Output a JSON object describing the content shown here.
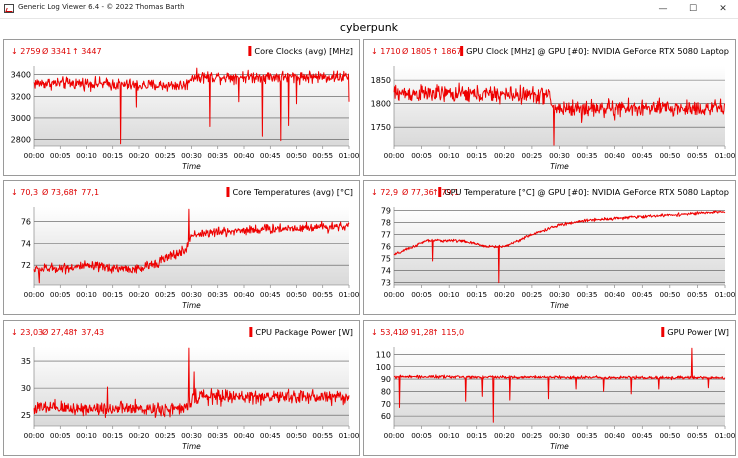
{
  "window": {
    "title": "Generic Log Viewer 6.4 - © 2022 Thomas Barth",
    "minimize_glyph": "—",
    "maximize_glyph": "☐",
    "close_glyph": "✕"
  },
  "page_title": "cyberpunk",
  "colors": {
    "line": "#ee0000",
    "stats": "#dd0000",
    "legend_box": "#ee0000"
  },
  "chart_data": [
    {
      "type": "line",
      "title": "Core Clocks (avg) [MHz]",
      "stats": {
        "min": "↓ 2759",
        "avg": "Ø 3341",
        "max": "↑ 3447"
      },
      "xlabel": "Time",
      "xlim": [
        0,
        60
      ],
      "x_ticks": [
        "00:00",
        "00:05",
        "00:10",
        "00:15",
        "00:20",
        "00:25",
        "00:30",
        "00:35",
        "00:40",
        "00:45",
        "00:50",
        "00:55",
        "01:00"
      ],
      "ylim": [
        2740,
        3480
      ],
      "y_ticks": [
        2800,
        3000,
        3200,
        3400
      ],
      "series": [
        {
          "x_unit": "minutes",
          "profile": [
            [
              0,
              3320
            ],
            [
              10,
              3320
            ],
            [
              20,
              3300
            ],
            [
              29,
              3300
            ],
            [
              30,
              3380
            ],
            [
              60,
              3380
            ]
          ],
          "noise": 55,
          "dips": [
            [
              16.5,
              2760
            ],
            [
              19.5,
              3100
            ],
            [
              33.5,
              2920
            ],
            [
              39,
              3150
            ],
            [
              43.5,
              2830
            ],
            [
              47,
              2790
            ],
            [
              48.5,
              2930
            ],
            [
              50,
              3130
            ],
            [
              60,
              3150
            ]
          ]
        }
      ]
    },
    {
      "type": "line",
      "title": "GPU Clock [MHz] @ GPU [#0]: NVIDIA GeForce RTX 5080 Laptop",
      "stats": {
        "min": "↓ 1710",
        "avg": "Ø 1805",
        "max": "↑ 1867"
      },
      "xlabel": "Time",
      "xlim": [
        0,
        60
      ],
      "x_ticks": [
        "00:00",
        "00:05",
        "00:10",
        "00:15",
        "00:20",
        "00:25",
        "00:30",
        "00:35",
        "00:40",
        "00:45",
        "00:50",
        "00:55",
        "01:00"
      ],
      "ylim": [
        1710,
        1880
      ],
      "y_ticks": [
        1750,
        1800,
        1850
      ],
      "series": [
        {
          "x_unit": "minutes",
          "profile": [
            [
              0,
              1822
            ],
            [
              28,
              1818
            ],
            [
              29,
              1790
            ],
            [
              60,
              1790
            ]
          ],
          "noise": 18,
          "dips": [
            [
              29,
              1712
            ],
            [
              34,
              1760
            ],
            [
              40,
              1765
            ]
          ]
        }
      ]
    },
    {
      "type": "line",
      "title": "Core Temperatures (avg) [°C]",
      "stats": {
        "min": "↓ 70,3",
        "avg": "Ø 73,68",
        "max": "↑ 77,1"
      },
      "xlabel": "Time",
      "xlim": [
        0,
        60
      ],
      "x_ticks": [
        "00:00",
        "00:05",
        "00:10",
        "00:15",
        "00:20",
        "00:25",
        "00:30",
        "00:35",
        "00:40",
        "00:45",
        "00:50",
        "00:55",
        "01:00"
      ],
      "ylim": [
        70.2,
        77.3
      ],
      "y_ticks": [
        72,
        74,
        76
      ],
      "series": [
        {
          "x_unit": "minutes",
          "profile": [
            [
              0,
              71.6
            ],
            [
              10,
              71.9
            ],
            [
              20,
              71.6
            ],
            [
              24,
              72.4
            ],
            [
              29,
              73.4
            ],
            [
              30,
              74.8
            ],
            [
              40,
              75.2
            ],
            [
              60,
              75.6
            ]
          ],
          "noise": 0.45,
          "dips": [
            [
              29.5,
              77.1
            ],
            [
              1,
              70.4
            ]
          ]
        }
      ]
    },
    {
      "type": "line",
      "title": "GPU Temperature [°C] @ GPU [#0]: NVIDIA GeForce RTX 5080 Laptop",
      "stats": {
        "min": "↓ 72,9",
        "avg": "Ø 77,36",
        "max": "↑ 79,1"
      },
      "xlabel": "Time",
      "xlim": [
        0,
        60
      ],
      "x_ticks": [
        "00:00",
        "00:05",
        "00:10",
        "00:15",
        "00:20",
        "00:25",
        "00:30",
        "00:35",
        "00:40",
        "00:45",
        "00:50",
        "00:55",
        "01:00"
      ],
      "ylim": [
        72.8,
        79.3
      ],
      "y_ticks": [
        73,
        74,
        75,
        76,
        77,
        78,
        79
      ],
      "series": [
        {
          "x_unit": "minutes",
          "profile": [
            [
              0,
              75.3
            ],
            [
              6,
              76.5
            ],
            [
              12,
              76.5
            ],
            [
              17,
              76.0
            ],
            [
              20,
              76.0
            ],
            [
              25,
              77.0
            ],
            [
              30,
              77.8
            ],
            [
              35,
              78.2
            ],
            [
              45,
              78.5
            ],
            [
              60,
              78.9
            ]
          ],
          "noise": 0.12,
          "dips": [
            [
              19,
              73.0
            ],
            [
              7,
              74.8
            ]
          ]
        }
      ]
    },
    {
      "type": "line",
      "title": "CPU Package Power [W]",
      "stats": {
        "min": "↓ 23,03",
        "avg": "Ø 27,48",
        "max": "↑ 37,43"
      },
      "xlabel": "Time",
      "xlim": [
        0,
        60
      ],
      "x_ticks": [
        "00:00",
        "00:05",
        "00:10",
        "00:15",
        "00:20",
        "00:25",
        "00:30",
        "00:35",
        "00:40",
        "00:45",
        "00:50",
        "00:55",
        "01:00"
      ],
      "ylim": [
        23,
        37.6
      ],
      "y_ticks": [
        25,
        30,
        35
      ],
      "series": [
        {
          "x_unit": "minutes",
          "profile": [
            [
              0,
              26.3
            ],
            [
              29,
              26.1
            ],
            [
              30,
              28.4
            ],
            [
              60,
              28.4
            ]
          ],
          "noise": 1.3,
          "dips": [
            [
              29.5,
              37.4
            ],
            [
              30.5,
              33
            ],
            [
              14,
              30.2
            ]
          ]
        }
      ]
    },
    {
      "type": "line",
      "title": "GPU Power [W]",
      "stats": {
        "min": "↓ 53,41",
        "avg": "Ø 91,28",
        "max": "↑ 115,0"
      },
      "xlabel": "Time",
      "xlim": [
        0,
        60
      ],
      "x_ticks": [
        "00:00",
        "00:05",
        "00:10",
        "00:15",
        "00:20",
        "00:25",
        "00:30",
        "00:35",
        "00:40",
        "00:45",
        "00:50",
        "00:55",
        "01:00"
      ],
      "ylim": [
        52,
        116
      ],
      "y_ticks": [
        60,
        70,
        80,
        90,
        100,
        110
      ],
      "series": [
        {
          "x_unit": "minutes",
          "profile": [
            [
              0,
              92
            ],
            [
              60,
              91
            ]
          ],
          "noise": 1.2,
          "dips": [
            [
              18,
              55
            ],
            [
              54,
              115
            ],
            [
              1,
              67
            ],
            [
              13,
              72
            ],
            [
              16,
              76
            ],
            [
              21,
              73
            ],
            [
              28,
              74
            ],
            [
              33,
              82
            ],
            [
              38,
              80
            ],
            [
              43,
              78
            ],
            [
              48,
              82
            ],
            [
              57,
              83
            ]
          ]
        }
      ]
    }
  ]
}
